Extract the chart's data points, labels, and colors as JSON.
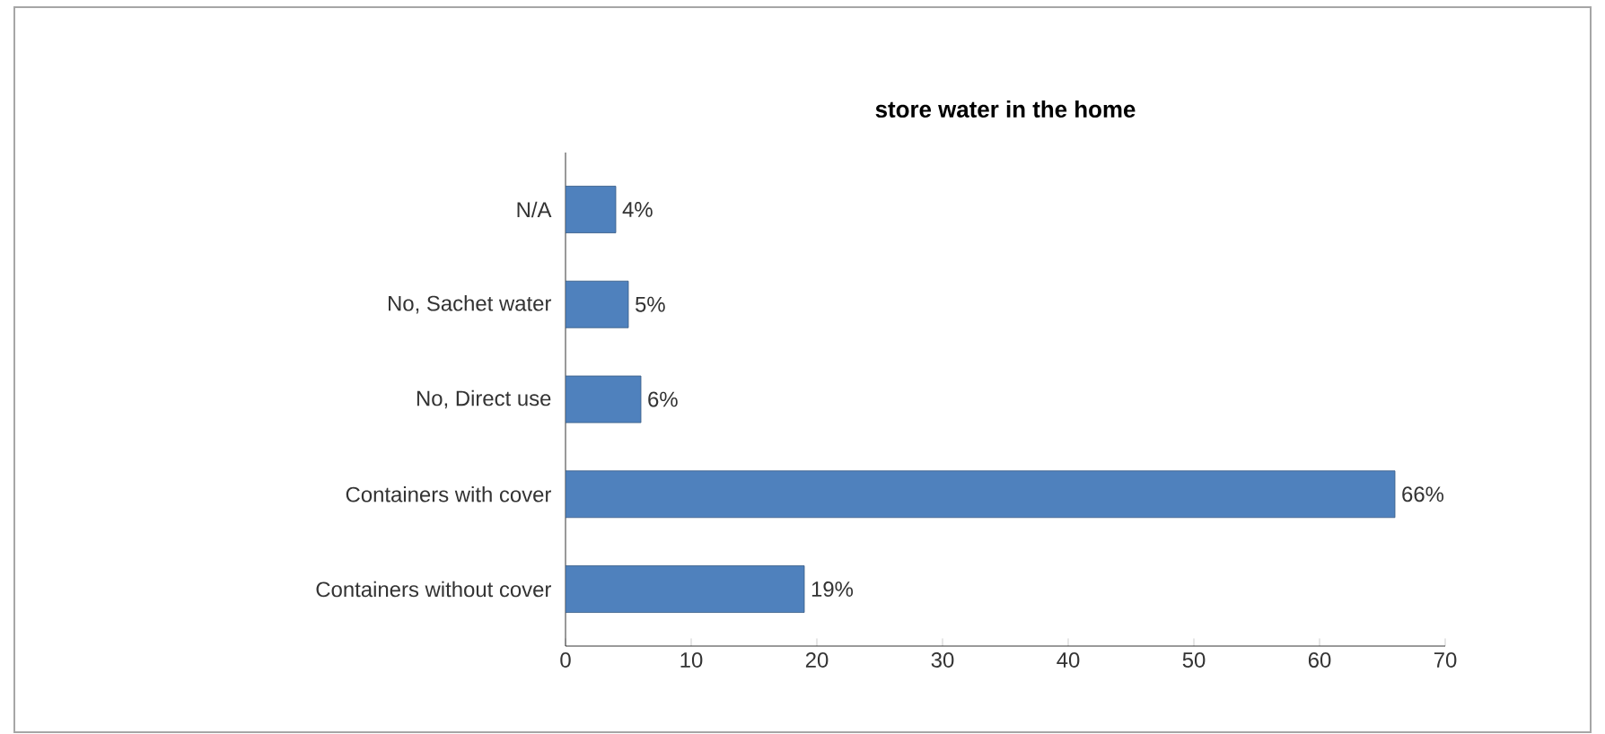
{
  "chart_data": {
    "type": "bar",
    "orientation": "horizontal",
    "title": "store water in the home",
    "categories": [
      "N/A",
      "No, Sachet water",
      "No, Direct use",
      "Containers with cover",
      "Containers without cover"
    ],
    "values": [
      4,
      5,
      6,
      66,
      19
    ],
    "value_labels": [
      "4%",
      "5%",
      "6%",
      "66%",
      "19%"
    ],
    "color": "#4f81bd",
    "xlim": [
      0,
      70
    ],
    "xticks": [
      0,
      10,
      20,
      30,
      40,
      50,
      60,
      70
    ],
    "grid": false
  }
}
